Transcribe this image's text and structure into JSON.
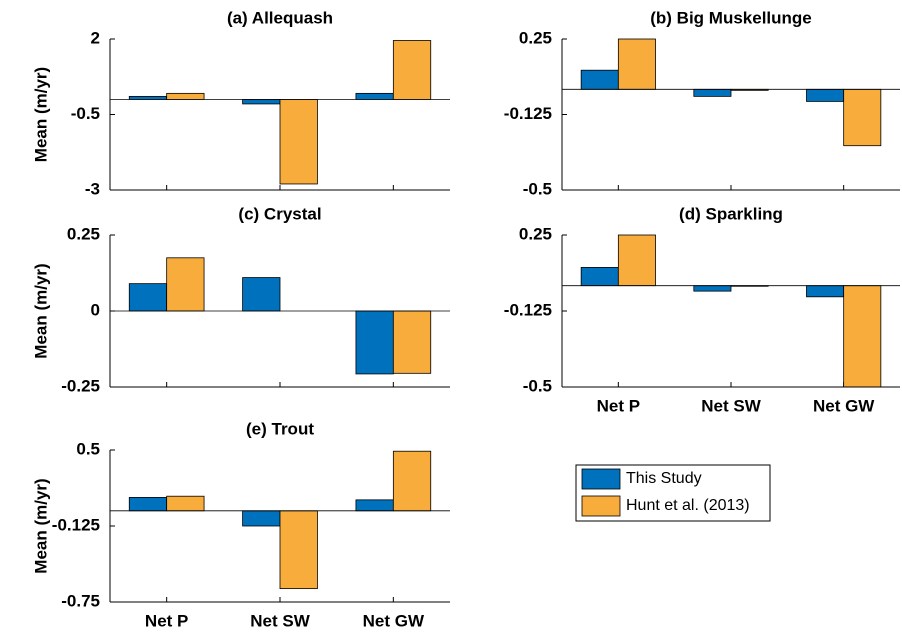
{
  "chart_data": [
    {
      "type": "bar",
      "title": "(a) Allequash",
      "ylabel": "Mean (m/yr)",
      "categories": [
        null,
        null,
        null
      ],
      "ylim": [
        -3,
        2
      ],
      "yticks": [
        -3,
        -0.5,
        2
      ],
      "series": [
        {
          "values": [
            0.1,
            -0.15,
            0.2
          ]
        },
        {
          "values": [
            0.2,
            -2.8,
            1.95
          ]
        }
      ]
    },
    {
      "type": "bar",
      "title": "(b) Big Muskellunge",
      "categories": [
        null,
        null,
        null
      ],
      "ylim": [
        -0.5,
        0.25
      ],
      "yticks": [
        -0.5,
        -0.125,
        0.25
      ],
      "series": [
        {
          "values": [
            0.095,
            -0.035,
            -0.06
          ]
        },
        {
          "values": [
            0.25,
            -0.005,
            -0.28
          ]
        }
      ]
    },
    {
      "type": "bar",
      "title": "(c) Crystal",
      "ylabel": "Mean (m/yr)",
      "categories": [
        null,
        null,
        null
      ],
      "ylim": [
        -0.25,
        0.25
      ],
      "yticks": [
        -0.25,
        0,
        0.25
      ],
      "series": [
        {
          "values": [
            0.09,
            0.11,
            -0.207
          ]
        },
        {
          "values": [
            0.175,
            0,
            -0.205
          ]
        }
      ]
    },
    {
      "type": "bar",
      "title": "(d) Sparkling",
      "categories": [
        "Net P",
        "Net SW",
        "Net GW"
      ],
      "ylim": [
        -0.5,
        0.25
      ],
      "yticks": [
        -0.5,
        -0.125,
        0.25
      ],
      "series": [
        {
          "values": [
            0.09,
            -0.027,
            -0.055
          ]
        },
        {
          "values": [
            0.25,
            -0.003,
            -0.5
          ]
        }
      ]
    },
    {
      "type": "bar",
      "title": "(e) Trout",
      "ylabel": "Mean (m/yr)",
      "categories": [
        "Net P",
        "Net SW",
        "Net GW"
      ],
      "ylim": [
        -0.75,
        0.5
      ],
      "yticks": [
        -0.75,
        -0.125,
        0.5
      ],
      "series": [
        {
          "values": [
            0.11,
            -0.125,
            0.09
          ]
        },
        {
          "values": [
            0.12,
            -0.64,
            0.49
          ]
        }
      ]
    }
  ],
  "legend": {
    "entries": [
      {
        "name": "This Study",
        "color": "#0072bd"
      },
      {
        "name": "Hunt et al. (2013)",
        "color": "#f8ac3c"
      }
    ]
  }
}
